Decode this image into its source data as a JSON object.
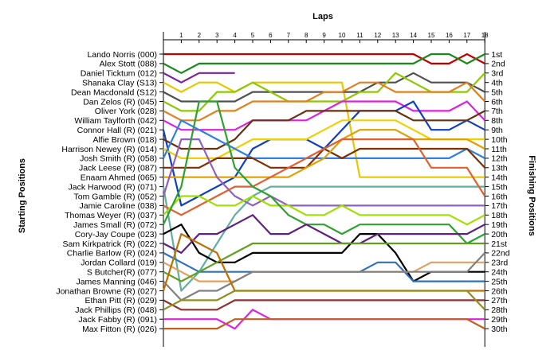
{
  "chart_data": {
    "type": "line",
    "title": "",
    "xlabel": "Laps",
    "ylabel_left": "Starting Positions",
    "ylabel_right": "Finishing Positions",
    "laps": [
      1,
      2,
      3,
      4,
      5,
      6,
      7,
      8,
      9,
      10,
      11,
      12,
      13,
      14,
      15,
      16,
      17,
      18
    ],
    "finishing_labels": [
      "1st",
      "2nd",
      "3rd",
      "4th",
      "5th",
      "6th",
      "7th",
      "8th",
      "9th",
      "10th",
      "11th",
      "12th",
      "13th",
      "14th",
      "15th",
      "16th",
      "17th",
      "18th",
      "19th",
      "20th",
      "21st",
      "22nd",
      "23rd",
      "24th",
      "25th",
      "26th",
      "27th",
      "28th",
      "29th",
      "30th"
    ],
    "series": [
      {
        "name": "Lando Norris (000)",
        "color": "#c00000",
        "positions": [
          1,
          1,
          1,
          1,
          1,
          1,
          1,
          1,
          1,
          1,
          1,
          1,
          1,
          1,
          1,
          2,
          2,
          1,
          2
        ]
      },
      {
        "name": "Alex Stott (088)",
        "color": "#1a8a1a",
        "positions": [
          2,
          3,
          2,
          2,
          2,
          2,
          2,
          2,
          2,
          2,
          2,
          2,
          2,
          2,
          2,
          1,
          1,
          2,
          1
        ]
      },
      {
        "name": "Daniel Ticktum (012)",
        "color": "#7a1fa0",
        "positions": [
          3,
          4,
          3,
          3,
          3
        ]
      },
      {
        "name": "Shanaka Clay (S13)",
        "color": "#e6c800",
        "positions": [
          4,
          5,
          4,
          4,
          5,
          4,
          4,
          4,
          4,
          4,
          4,
          14,
          14,
          14,
          14,
          14,
          14,
          14,
          14
        ]
      },
      {
        "name": "Dean Macdonald (S12)",
        "color": "#505050",
        "positions": [
          5,
          6,
          6,
          6,
          6,
          5,
          5,
          5,
          5,
          5,
          5,
          5,
          4,
          4,
          3,
          4,
          4,
          4,
          5
        ]
      },
      {
        "name": "Dan Zelos (R) (045)",
        "color": "#8dc800",
        "positions": [
          6,
          7,
          7,
          5,
          5,
          4,
          5,
          6,
          6,
          6,
          6,
          5,
          5,
          3,
          4,
          5,
          5,
          5,
          3
        ]
      },
      {
        "name": "Oliver York (028)",
        "color": "#e08020",
        "positions": [
          7,
          8,
          8,
          7,
          7,
          6,
          6,
          6,
          6,
          5,
          5,
          4,
          4,
          5,
          5,
          5,
          5,
          4,
          6
        ]
      },
      {
        "name": "William Taylforth (042)",
        "color": "#e020e0",
        "positions": [
          8,
          9,
          9,
          9,
          9,
          8,
          8,
          8,
          8,
          7,
          6,
          6,
          6,
          6,
          7,
          7,
          7,
          6,
          8
        ]
      },
      {
        "name": "Connor Hall (R) (021)",
        "color": "#1040c0",
        "positions": [
          9,
          17,
          16,
          15,
          14,
          11,
          10,
          10,
          10,
          11,
          9,
          7,
          7,
          7,
          6,
          9,
          9,
          8,
          9
        ]
      },
      {
        "name": "Alfie Brown (018)",
        "color": "#6a3010",
        "positions": [
          10,
          11,
          11,
          11,
          10,
          8,
          8,
          8,
          7,
          7,
          7,
          7,
          7,
          7,
          8,
          8,
          8,
          8,
          7
        ]
      },
      {
        "name": "Harrison Newey (R) (014)",
        "color": "#f0d000",
        "positions": [
          11,
          12,
          12,
          12,
          11,
          10,
          10,
          10,
          10,
          9,
          8,
          8,
          8,
          8,
          9,
          10,
          10,
          10,
          10
        ]
      },
      {
        "name": "Josh Smith (R) (058)",
        "color": "#3080e0",
        "positions": [
          12,
          8,
          9,
          10,
          11,
          12,
          12,
          12,
          12,
          12,
          12,
          12,
          12,
          12,
          12,
          12,
          12,
          11,
          12
        ]
      },
      {
        "name": "Jack Leese (R) (087)",
        "color": "#803000",
        "positions": [
          13,
          13,
          13,
          12,
          12,
          12,
          13,
          13,
          13,
          11,
          12,
          11,
          11,
          11,
          11,
          11,
          11,
          11,
          13
        ]
      },
      {
        "name": "Enaam Ahmed (065)",
        "color": "#e0a000",
        "positions": [
          14,
          14,
          14,
          14,
          14,
          14,
          14,
          14,
          13,
          12,
          10,
          9,
          9,
          9,
          10,
          10,
          10,
          10,
          11
        ]
      },
      {
        "name": "Jack Harwood (R) (071)",
        "color": "#60b0a0",
        "positions": [
          15,
          26,
          24,
          21,
          18,
          16,
          15,
          15,
          15,
          15,
          15,
          15,
          15,
          15,
          15,
          15,
          15,
          15,
          15
        ]
      },
      {
        "name": "Tom Gamble (R) (052)",
        "color": "#9060c0",
        "positions": [
          16,
          10,
          10,
          14,
          16,
          17,
          16,
          17,
          17,
          17,
          17,
          17,
          17,
          17,
          17,
          17,
          17,
          17,
          17
        ]
      },
      {
        "name": "Jamie Caroline (038)",
        "color": "#e06030",
        "positions": [
          17,
          18,
          17,
          16,
          15,
          15,
          14,
          13,
          12,
          11,
          10,
          10,
          10,
          10,
          10,
          13,
          13,
          13,
          16
        ]
      },
      {
        "name": "Thomas Weyer (R) (037)",
        "color": "#a0e000",
        "positions": [
          18,
          16,
          16,
          17,
          17,
          16,
          17,
          17,
          18,
          18,
          17,
          18,
          18,
          18,
          18,
          18,
          18,
          19,
          18
        ]
      },
      {
        "name": "James Small (R) (072)",
        "color": "#30a030",
        "positions": [
          19,
          15,
          6,
          6,
          13,
          15,
          16,
          18,
          19,
          19,
          20,
          19,
          19,
          19,
          19,
          19,
          19,
          21,
          20
        ]
      },
      {
        "name": "Cory-Jay Coupe (023)",
        "color": "#000000",
        "positions": [
          20,
          19,
          22,
          23,
          23,
          22,
          22,
          22,
          22,
          22,
          22,
          20,
          20,
          22,
          25,
          24,
          24,
          24,
          24
        ]
      },
      {
        "name": "Sam Kirkpatrick (R) (022)",
        "color": "#602080",
        "positions": [
          21,
          22,
          20,
          20,
          19,
          18,
          20,
          20,
          19,
          20,
          21,
          21,
          20,
          20,
          20,
          20,
          20,
          20,
          19
        ]
      },
      {
        "name": "Charlie Barlow (R) (024)",
        "color": "#3070c0",
        "positions": [
          22,
          23,
          24,
          24,
          24,
          24,
          24,
          24,
          24,
          24,
          24,
          24,
          23,
          23,
          25,
          25,
          25,
          25,
          25
        ]
      },
      {
        "name": "Jordan Collard (019)",
        "color": "#e0a060",
        "positions": [
          23,
          24,
          25,
          25,
          25,
          24,
          24,
          24,
          24,
          24,
          24,
          24,
          24,
          24,
          24,
          23,
          23,
          23,
          23
        ]
      },
      {
        "name": "S Butcher(R) (077)",
        "color": "#60a020",
        "positions": [
          24,
          25,
          24,
          23,
          22,
          21,
          21,
          21,
          21,
          21,
          21,
          21,
          21,
          21,
          21,
          21,
          21,
          21,
          21
        ]
      },
      {
        "name": "James Manning (046)",
        "color": "#808080",
        "positions": [
          25,
          27,
          26,
          26,
          25,
          24,
          24,
          24,
          24,
          24,
          24,
          24,
          24,
          24,
          24,
          24,
          24,
          24,
          22
        ]
      },
      {
        "name": "Jonathan Browne (R) (027)",
        "color": "#c07000",
        "positions": [
          26,
          20,
          21,
          22,
          26,
          26,
          26,
          26,
          26,
          26,
          26,
          26,
          26,
          26,
          26,
          26,
          26,
          26,
          26
        ]
      },
      {
        "name": "Ethan Pitt (R) (029)",
        "color": "#903030",
        "positions": [
          27,
          28,
          28,
          28,
          27,
          27,
          27,
          27,
          27,
          27,
          27,
          27,
          27,
          27,
          27,
          27,
          27,
          27,
          27
        ]
      },
      {
        "name": "Jack Phillips (R) (048)",
        "color": "#909020",
        "positions": [
          28,
          27,
          27,
          27,
          26,
          26,
          26,
          26,
          26,
          26,
          26,
          26,
          26,
          26,
          26,
          26,
          26,
          26,
          28
        ]
      },
      {
        "name": "Jack Fabby (R) (091)",
        "color": "#e020e0",
        "positions": [
          29,
          29,
          29,
          29,
          30,
          28,
          29,
          29,
          29,
          29,
          29,
          29,
          29,
          29,
          29,
          29,
          29,
          29,
          29
        ]
      },
      {
        "name": "Max Fitton (R) (026)",
        "color": "#c06020",
        "positions": [
          30,
          30,
          30,
          30,
          29,
          29,
          29,
          29,
          29,
          29,
          29,
          29,
          29,
          29,
          29,
          29,
          29,
          29,
          30
        ]
      }
    ]
  }
}
